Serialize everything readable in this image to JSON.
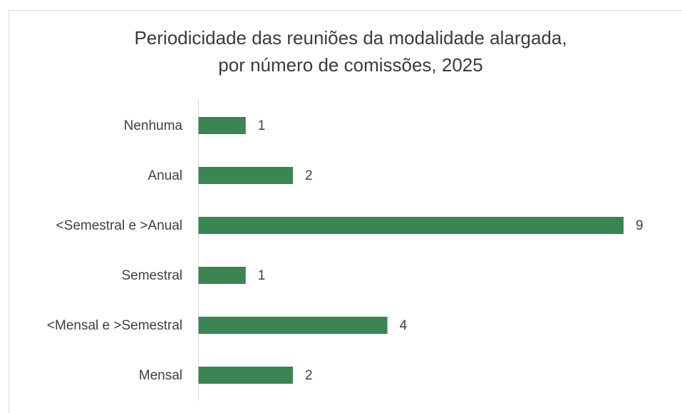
{
  "chart_data": {
    "type": "barh",
    "title": [
      "Periodicidade das reuniões da modalidade alargada,",
      "por número de comissões, 2025"
    ],
    "categories": [
      "Nenhuma",
      "Anual",
      "<Semestral e >Anual",
      "Semestral",
      "<Mensal e >Semestral",
      "Mensal"
    ],
    "values": [
      1,
      2,
      9,
      1,
      4,
      2
    ],
    "color": "#3a8552"
  }
}
